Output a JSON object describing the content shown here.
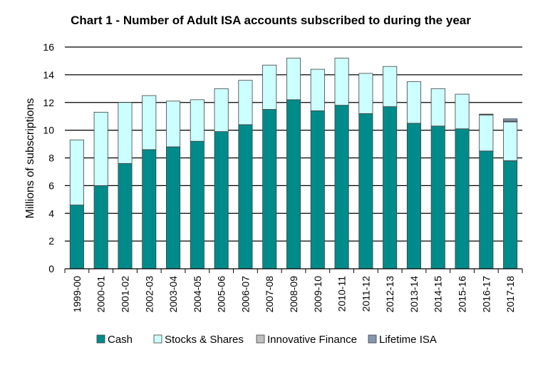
{
  "chart_data": {
    "type": "bar",
    "stacked": true,
    "title": "Chart 1 - Number of Adult ISA accounts subscribed to during the year",
    "xlabel": "",
    "ylabel": "Millions of subscriptions",
    "ylim": [
      0,
      16
    ],
    "yticks": [
      0,
      2,
      4,
      6,
      8,
      10,
      12,
      14,
      16
    ],
    "grid": true,
    "legend_position": "bottom",
    "categories": [
      "1999-00",
      "2000-01",
      "2001-02",
      "2002-03",
      "2003-04",
      "2004-05",
      "2005-06",
      "2006-07",
      "2007-08",
      "2008-09",
      "2009-10",
      "2010-11",
      "2011-12",
      "2012-13",
      "2013-14",
      "2014-15",
      "2015-16",
      "2016-17",
      "2017-18"
    ],
    "series": [
      {
        "name": "Cash",
        "color": "#008b8b",
        "values": [
          4.6,
          6.0,
          7.6,
          8.6,
          8.8,
          9.2,
          9.9,
          10.4,
          11.5,
          12.2,
          11.4,
          11.8,
          11.2,
          11.7,
          10.5,
          10.3,
          10.1,
          8.5,
          7.8
        ]
      },
      {
        "name": "Stocks & Shares",
        "color": "#ccffff",
        "values": [
          4.7,
          5.3,
          4.4,
          3.9,
          3.3,
          3.0,
          3.1,
          3.2,
          3.2,
          3.0,
          3.0,
          3.4,
          2.9,
          2.9,
          3.0,
          2.7,
          2.5,
          2.6,
          2.8
        ]
      },
      {
        "name": "Innovative Finance",
        "color": "#bfbfbf",
        "values": [
          0,
          0,
          0,
          0,
          0,
          0,
          0,
          0,
          0,
          0,
          0,
          0,
          0,
          0,
          0,
          0,
          0,
          0.03,
          0.05
        ]
      },
      {
        "name": "Lifetime ISA",
        "color": "#8497b0",
        "values": [
          0,
          0,
          0,
          0,
          0,
          0,
          0,
          0,
          0,
          0,
          0,
          0,
          0,
          0,
          0,
          0,
          0,
          0.03,
          0.17
        ]
      }
    ]
  }
}
